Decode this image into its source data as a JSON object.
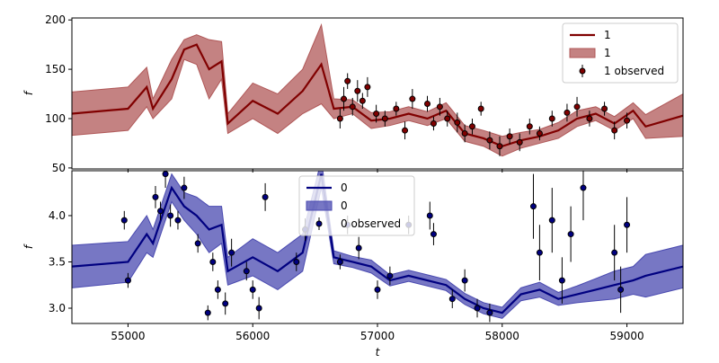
{
  "chart_data": [
    {
      "type": "line-band-errorbar",
      "ylabel": "f",
      "legend": "upper right",
      "xlim": [
        54550,
        59450
      ],
      "ylim": [
        49,
        202
      ],
      "yticks": [
        50,
        100,
        150,
        200
      ],
      "x": [
        54550,
        55000,
        55150,
        55200,
        55350,
        55450,
        55550,
        55650,
        55750,
        55800,
        56000,
        56200,
        56400,
        56550,
        56650,
        56800,
        56950,
        57100,
        57250,
        57400,
        57550,
        57700,
        57850,
        58000,
        58150,
        58300,
        58450,
        58600,
        58750,
        58900,
        59050,
        59150,
        59450
      ],
      "series": [
        {
          "name": "1",
          "kind": "line",
          "color": "#800000",
          "values": [
            105,
            110,
            132,
            110,
            140,
            170,
            175,
            150,
            158,
            95,
            118,
            105,
            128,
            155,
            110,
            112,
            98,
            100,
            105,
            100,
            108,
            85,
            80,
            72,
            78,
            82,
            88,
            100,
            105,
            95,
            108,
            92,
            103
          ]
        },
        {
          "name": "1",
          "kind": "band",
          "color": "#b05858",
          "lower": [
            83,
            88,
            112,
            100,
            120,
            160,
            155,
            120,
            140,
            85,
            100,
            85,
            105,
            115,
            100,
            105,
            90,
            93,
            98,
            93,
            100,
            77,
            72,
            62,
            70,
            75,
            80,
            92,
            98,
            88,
            100,
            80,
            82
          ],
          "upper": [
            127,
            132,
            152,
            120,
            160,
            180,
            185,
            180,
            178,
            105,
            136,
            125,
            150,
            195,
            120,
            119,
            106,
            107,
            112,
            107,
            116,
            93,
            88,
            82,
            86,
            89,
            96,
            108,
            112,
            102,
            116,
            104,
            125
          ]
        },
        {
          "name": "1 observed",
          "kind": "errorbar",
          "color": "#800000",
          "x": [
            56700,
            56730,
            56760,
            56800,
            56840,
            56880,
            56920,
            56990,
            57060,
            57150,
            57220,
            57280,
            57400,
            57450,
            57500,
            57560,
            57640,
            57700,
            57760,
            57830,
            57900,
            57980,
            58060,
            58140,
            58220,
            58300,
            58400,
            58520,
            58600,
            58700,
            58820,
            58900,
            59000
          ],
          "values": [
            100,
            120,
            138,
            112,
            128,
            118,
            132,
            105,
            100,
            110,
            88,
            120,
            115,
            95,
            112,
            100,
            96,
            85,
            92,
            110,
            78,
            72,
            82,
            76,
            92,
            85,
            100,
            106,
            112,
            100,
            110,
            88,
            98
          ],
          "errors": [
            10,
            12,
            8,
            9,
            11,
            8,
            10,
            9,
            8,
            7,
            9,
            10,
            8,
            7,
            9,
            8,
            10,
            9,
            8,
            7,
            9,
            10,
            8,
            9,
            8,
            7,
            8,
            9,
            10,
            8,
            7,
            9,
            8
          ]
        }
      ]
    },
    {
      "type": "line-band-errorbar",
      "ylabel": "f",
      "xlabel": "t",
      "legend": "upper center",
      "xlim": [
        54550,
        59450
      ],
      "ylim": [
        2.835,
        4.485
      ],
      "yticks": [
        {
          "value": 3,
          "label": "3.0"
        },
        3.5,
        {
          "value": 4,
          "label": "4.0"
        }
      ],
      "xticks": [
        55000,
        56000,
        57000,
        58000,
        59000
      ],
      "x": [
        54550,
        55000,
        55150,
        55200,
        55350,
        55450,
        55550,
        55650,
        55750,
        55800,
        56000,
        56200,
        56400,
        56550,
        56650,
        56800,
        56950,
        57100,
        57250,
        57400,
        57550,
        57700,
        57850,
        58000,
        58150,
        58300,
        58450,
        58600,
        58750,
        58900,
        59050,
        59150,
        59450
      ],
      "series": [
        {
          "name": "0",
          "kind": "line",
          "color": "#000080",
          "values": [
            3.45,
            3.5,
            3.8,
            3.7,
            4.3,
            4.1,
            4.0,
            3.85,
            3.9,
            3.4,
            3.55,
            3.4,
            3.6,
            4.45,
            3.55,
            3.5,
            3.45,
            3.3,
            3.35,
            3.3,
            3.25,
            3.1,
            3.0,
            2.95,
            3.15,
            3.2,
            3.1,
            3.15,
            3.2,
            3.25,
            3.3,
            3.35,
            3.45
          ]
        },
        {
          "name": "0",
          "kind": "band",
          "color": "#4a4ab0",
          "lower": [
            3.22,
            3.28,
            3.6,
            3.55,
            4.15,
            3.95,
            3.8,
            3.6,
            3.7,
            3.25,
            3.35,
            3.2,
            3.4,
            4.3,
            3.48,
            3.44,
            3.38,
            3.24,
            3.29,
            3.24,
            3.19,
            3.04,
            2.94,
            2.89,
            3.08,
            3.12,
            3.03,
            3.06,
            3.08,
            3.1,
            3.15,
            3.12,
            3.22
          ],
          "upper": [
            3.68,
            3.72,
            4.0,
            3.85,
            4.45,
            4.25,
            4.2,
            4.1,
            4.1,
            3.55,
            3.75,
            3.6,
            3.8,
            4.6,
            3.62,
            3.56,
            3.52,
            3.36,
            3.41,
            3.36,
            3.31,
            3.16,
            3.06,
            3.01,
            3.22,
            3.28,
            3.17,
            3.24,
            3.32,
            3.4,
            3.45,
            3.58,
            3.68
          ]
        },
        {
          "name": "0 observed",
          "kind": "errorbar",
          "color": "#000080",
          "x": [
            54970,
            55000,
            55220,
            55260,
            55300,
            55340,
            55400,
            55450,
            55560,
            55640,
            55680,
            55720,
            55780,
            55830,
            55950,
            56000,
            56050,
            56100,
            56350,
            56420,
            56700,
            56760,
            56850,
            57000,
            57100,
            57250,
            57420,
            57450,
            57600,
            57700,
            57800,
            57900,
            58250,
            58300,
            58400,
            58480,
            58550,
            58650,
            58900,
            58950,
            59000
          ],
          "values": [
            3.95,
            3.3,
            4.2,
            4.05,
            4.45,
            4.0,
            3.95,
            4.3,
            3.7,
            2.95,
            3.5,
            3.2,
            3.05,
            3.6,
            3.4,
            3.2,
            3.0,
            4.2,
            3.5,
            3.85,
            3.5,
            3.9,
            3.65,
            3.2,
            3.35,
            3.9,
            4.0,
            3.8,
            3.1,
            3.3,
            3.0,
            2.95,
            4.1,
            3.6,
            3.95,
            3.3,
            3.8,
            4.3,
            3.6,
            3.2,
            3.9
          ],
          "errors": [
            0.1,
            0.08,
            0.12,
            0.1,
            0.15,
            0.12,
            0.1,
            0.12,
            0.1,
            0.08,
            0.1,
            0.1,
            0.12,
            0.15,
            0.1,
            0.1,
            0.12,
            0.15,
            0.1,
            0.12,
            0.08,
            0.1,
            0.12,
            0.1,
            0.1,
            0.1,
            0.15,
            0.12,
            0.1,
            0.12,
            0.1,
            0.1,
            0.35,
            0.3,
            0.35,
            0.25,
            0.3,
            0.35,
            0.3,
            0.25,
            0.3
          ]
        }
      ]
    }
  ]
}
